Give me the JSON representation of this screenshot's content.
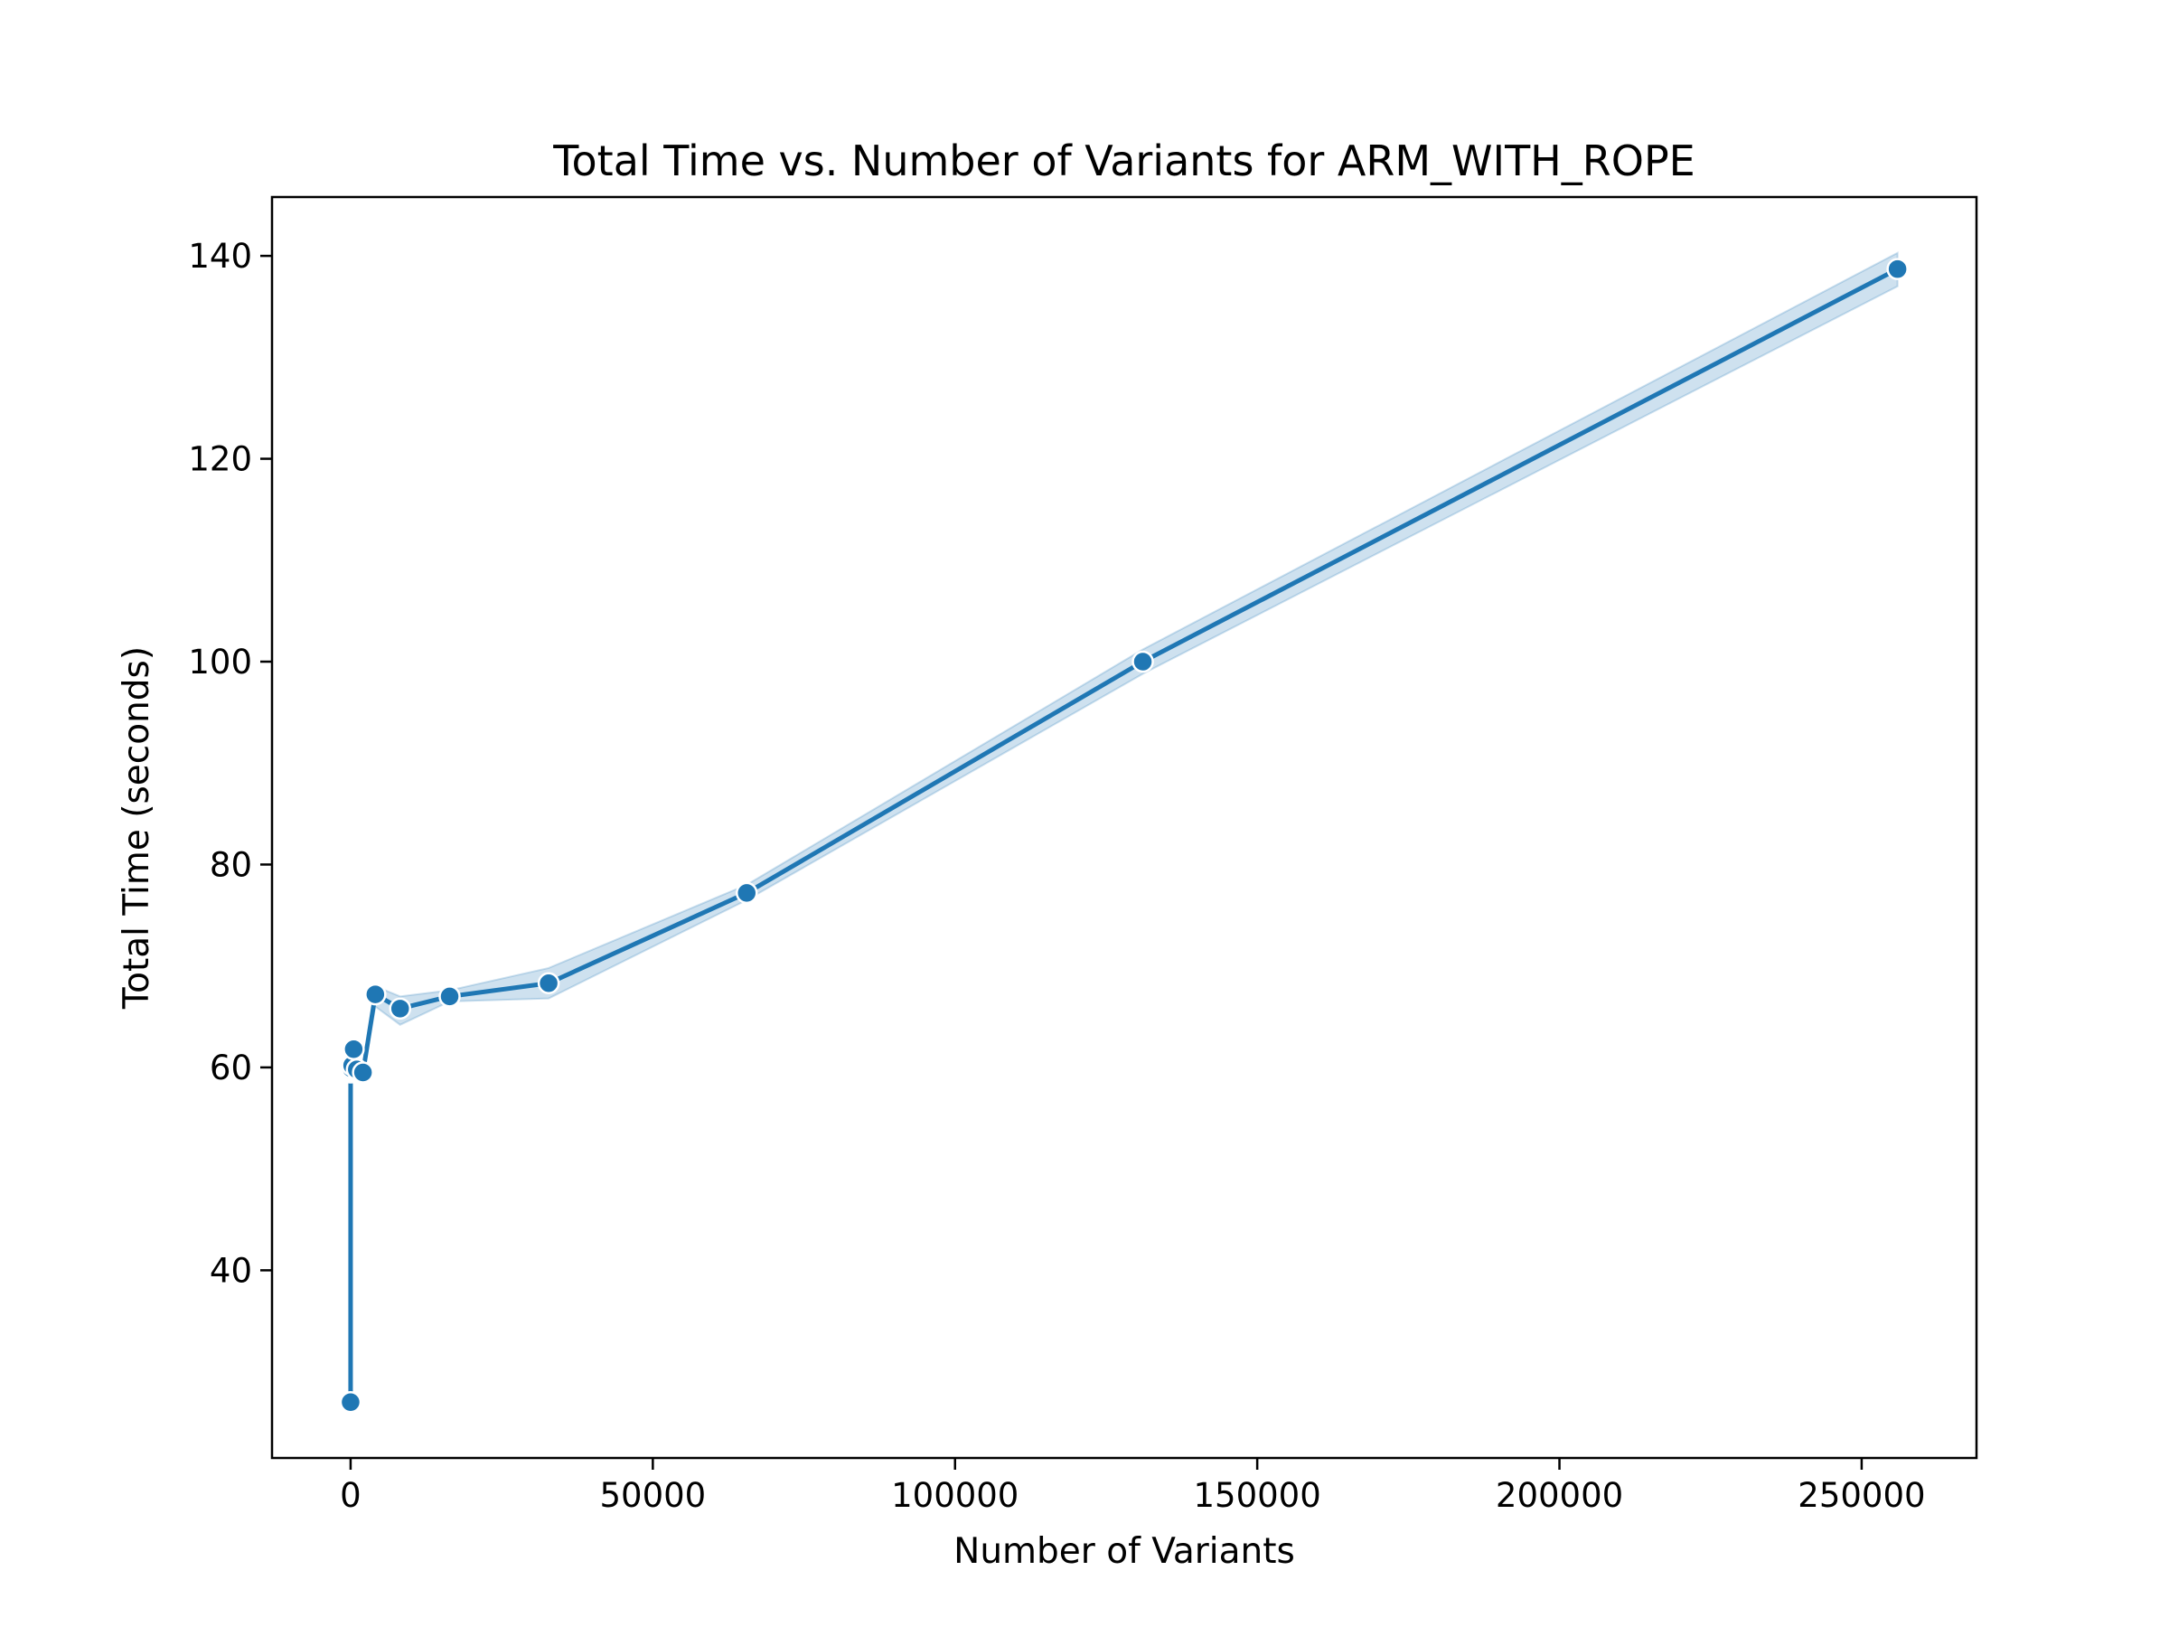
{
  "chart_data": {
    "type": "line",
    "title": "Total Time vs. Number of Variants for ARM_WITH_ROPE",
    "xlabel": "Number of Variants",
    "ylabel": "Total Time (seconds)",
    "xlim": [
      -13000,
      269000
    ],
    "ylim": [
      21.5,
      145.8
    ],
    "xticks": [
      0,
      50000,
      100000,
      150000,
      200000,
      250000
    ],
    "yticks": [
      40,
      60,
      80,
      100,
      120,
      140
    ],
    "grid": false,
    "legend": "none",
    "color": "#1f77b4",
    "band_color": "#1f77b4",
    "series": [
      {
        "x": [
          1,
          2,
          4,
          8,
          16,
          32,
          64,
          128,
          256,
          512,
          1024,
          2048,
          4096,
          8192,
          16384,
          32768,
          65536,
          131072,
          255936
        ],
        "y": [
          27.0,
          59.5,
          60.0,
          59.8,
          60.0,
          59.7,
          60.1,
          59.9,
          60.2,
          61.8,
          59.8,
          59.5,
          67.2,
          65.8,
          67.0,
          68.3,
          77.2,
          100.0,
          138.7
        ],
        "ci_lower": [
          27.0,
          59.0,
          59.5,
          59.3,
          59.5,
          59.2,
          59.6,
          59.4,
          59.7,
          61.0,
          59.3,
          59.0,
          66.0,
          64.2,
          66.5,
          66.8,
          76.5,
          98.8,
          137.0
        ],
        "ci_upper": [
          27.0,
          60.0,
          60.5,
          60.3,
          60.5,
          60.2,
          60.6,
          60.4,
          60.7,
          62.6,
          60.3,
          60.0,
          68.0,
          67.0,
          67.6,
          69.8,
          78.0,
          101.2,
          140.3
        ]
      }
    ]
  }
}
